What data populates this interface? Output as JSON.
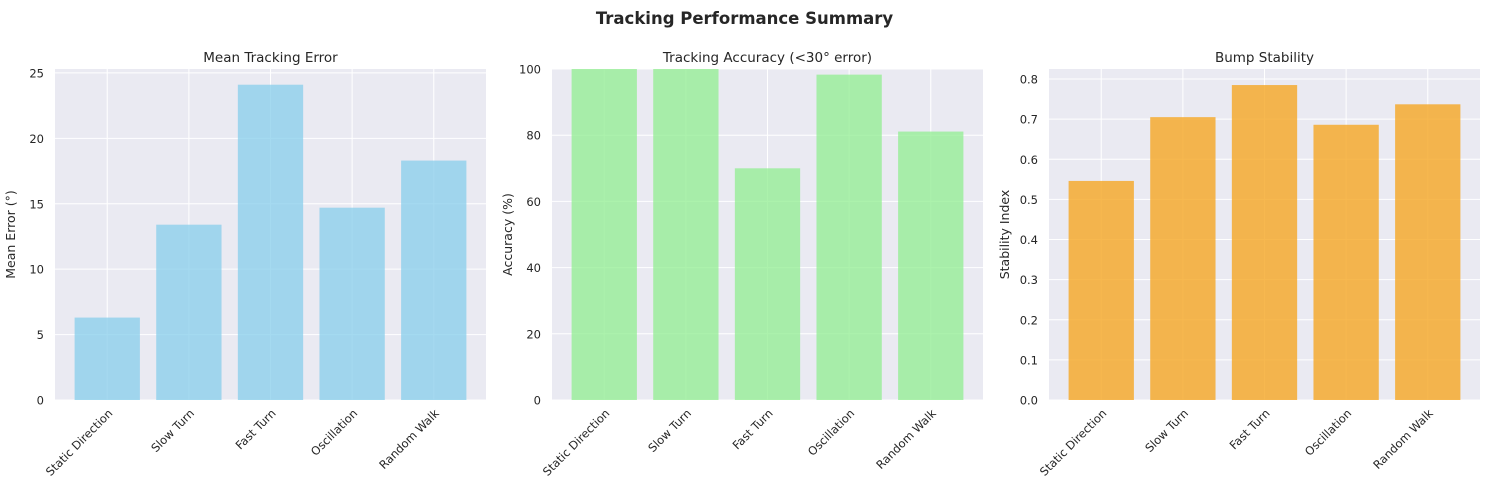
{
  "figure": {
    "suptitle": "Tracking Performance Summary"
  },
  "chart_data": [
    {
      "type": "bar",
      "title": "Mean Tracking Error",
      "xlabel": "",
      "ylabel": "Mean Error (°)",
      "categories": [
        "Static Direction",
        "Slow Turn",
        "Fast Turn",
        "Oscillation",
        "Random Walk"
      ],
      "values": [
        6.3,
        13.4,
        24.1,
        14.7,
        18.3
      ],
      "ylim": [
        0,
        25.3
      ],
      "yticks": [
        0,
        5,
        10,
        15,
        20,
        25
      ],
      "ytick_labels": [
        "0",
        "5",
        "10",
        "15",
        "20",
        "25"
      ],
      "color": "#87ceeb",
      "grid": true
    },
    {
      "type": "bar",
      "title": "Tracking Accuracy (<30° error)",
      "xlabel": "",
      "ylabel": "Accuracy (%)",
      "categories": [
        "Static Direction",
        "Slow Turn",
        "Fast Turn",
        "Oscillation",
        "Random Walk"
      ],
      "values": [
        100,
        100,
        70,
        98.3,
        81.1
      ],
      "ylim": [
        0,
        100
      ],
      "yticks": [
        0,
        20,
        40,
        60,
        80,
        100
      ],
      "ytick_labels": [
        "0",
        "20",
        "40",
        "60",
        "80",
        "100"
      ],
      "color": "#90ee90",
      "grid": true
    },
    {
      "type": "bar",
      "title": "Bump Stability",
      "xlabel": "",
      "ylabel": "Stability Index",
      "categories": [
        "Static Direction",
        "Slow Turn",
        "Fast Turn",
        "Oscillation",
        "Random Walk"
      ],
      "values": [
        0.546,
        0.705,
        0.785,
        0.686,
        0.737
      ],
      "ylim": [
        0,
        0.825
      ],
      "yticks": [
        0,
        0.1,
        0.2,
        0.3,
        0.4,
        0.5,
        0.6,
        0.7,
        0.8
      ],
      "ytick_labels": [
        "0.0",
        "0.1",
        "0.2",
        "0.3",
        "0.4",
        "0.5",
        "0.6",
        "0.7",
        "0.8"
      ],
      "color": "#f5a623",
      "grid": true
    }
  ]
}
